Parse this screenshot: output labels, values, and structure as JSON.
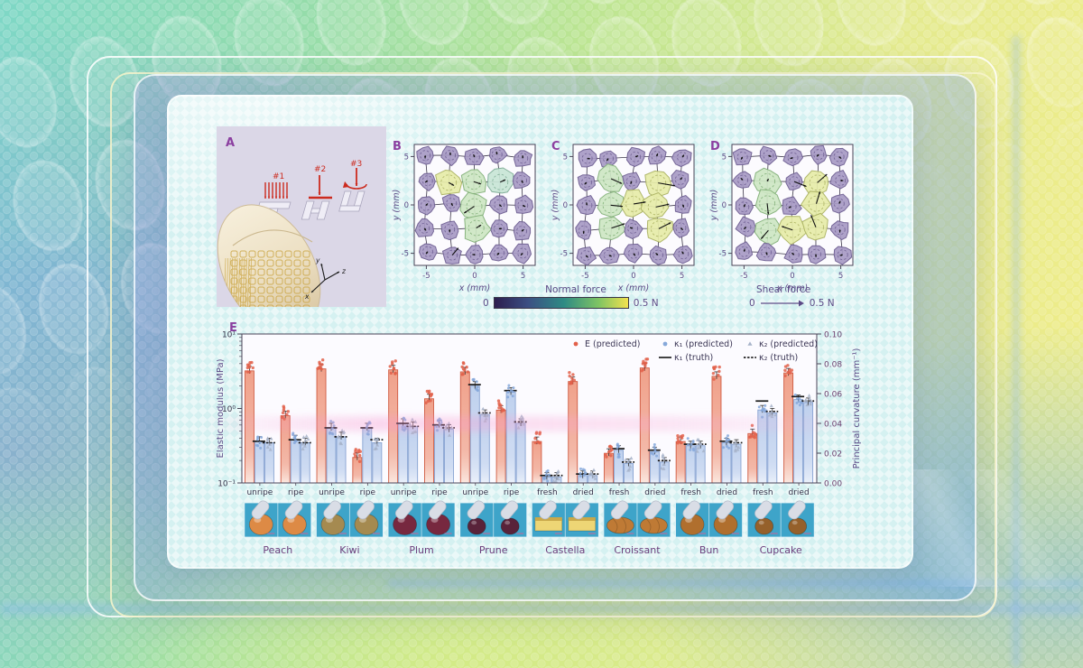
{
  "panel_a": {
    "label": "A",
    "force_labels": [
      "#1",
      "#2",
      "#3"
    ],
    "axis_labels": [
      "x",
      "y",
      "z"
    ]
  },
  "force_maps": {
    "x_label": "x (mm)",
    "y_label": "y (mm)",
    "tick_labels": [
      "-5",
      "0",
      "5"
    ],
    "cell_colors": {
      "p": [
        "#a79ac4",
        "#6c5c90"
      ],
      "g": [
        "#cde6c3",
        "#7fae76"
      ],
      "y": [
        "#e6eba8",
        "#a9b05f"
      ],
      "t": [
        "#c8e5d6",
        "#7aaa92"
      ]
    },
    "panels": [
      {
        "label": "B",
        "rows": [
          "ppppp",
          "pygtp",
          "ppgpp",
          "ppgpp",
          "ppppp"
        ],
        "arrows": [
          [
            1,
            1,
            0.22,
            0.12
          ],
          [
            1,
            2,
            0.3,
            0.1
          ],
          [
            1,
            3,
            0.22,
            -0.1
          ],
          [
            2,
            2,
            -0.42,
            0.28
          ],
          [
            3,
            2,
            0.2,
            -0.12
          ],
          [
            4,
            1,
            0.25,
            -0.3
          ]
        ]
      },
      {
        "label": "C",
        "rows": [
          "ppppp",
          "pgpyp",
          "pgyyp",
          "pgpyp",
          "ppppp"
        ],
        "arrows": [
          [
            1,
            1,
            0.45,
            0.2
          ],
          [
            1,
            3,
            0.7,
            0.12
          ],
          [
            2,
            1,
            0.5,
            0.05
          ],
          [
            2,
            2,
            0.5,
            -0.08
          ],
          [
            2,
            3,
            0.55,
            -0.12
          ],
          [
            3,
            1,
            0.55,
            -0.18
          ],
          [
            3,
            3,
            0.5,
            -0.25
          ]
        ]
      },
      {
        "label": "D",
        "rows": [
          "ppppp",
          "pgpyp",
          "pgpyp",
          "pgyyp",
          "ppppp"
        ],
        "arrows": [
          [
            1,
            2,
            0.5,
            0.2
          ],
          [
            1,
            3,
            0.4,
            -0.35
          ],
          [
            2,
            3,
            0.15,
            -0.5
          ],
          [
            3,
            2,
            -0.45,
            -0.15
          ],
          [
            2,
            1,
            0.05,
            0.45
          ],
          [
            3,
            1,
            -0.3,
            0.35
          ],
          [
            3,
            3,
            -0.2,
            -0.5
          ]
        ]
      }
    ],
    "colorbar": {
      "label": "Normal force",
      "min": "0",
      "max": "0.5 N"
    },
    "shear": {
      "label": "Shear force",
      "min": "0",
      "max": "0.5 N"
    }
  },
  "chart_data": {
    "type": "bar",
    "panel_label": "E",
    "left_axis": {
      "label": "Elastic modulus (MPa)",
      "scale": "log",
      "range": [
        0.1,
        10
      ],
      "tick_labels": [
        "10⁻¹",
        "10⁰",
        "10¹"
      ]
    },
    "right_axis": {
      "label": "Principal curvature (mm⁻¹)",
      "scale": "linear",
      "range": [
        0,
        0.1
      ],
      "tick_labels": [
        "0.00",
        "0.02",
        "0.04",
        "0.06",
        "0.08",
        "0.10"
      ]
    },
    "legend": [
      {
        "label": "E (predicted)",
        "marker": "dot",
        "color": "#e2604a"
      },
      {
        "label": "κ₁ (predicted)",
        "marker": "dot",
        "color": "#86a8da"
      },
      {
        "label": "κ₂ (predicted)",
        "marker": "triangle",
        "color": "#a7b3c9"
      },
      {
        "label": "κ₁ (truth)",
        "marker": "line",
        "color": "#222222"
      },
      {
        "label": "κ₂ (truth)",
        "marker": "dashed-line",
        "color": "#222222"
      }
    ],
    "groups": [
      {
        "food": "Peach",
        "state": "unripe",
        "E": 3.2,
        "k1": 0.028,
        "k2": 0.027,
        "k1_truth": 0.028,
        "k2_truth": 0.027
      },
      {
        "food": "Peach",
        "state": "ripe",
        "E": 0.8,
        "k1": 0.029,
        "k2": 0.027,
        "k1_truth": 0.029,
        "k2_truth": 0.027
      },
      {
        "food": "Kiwi",
        "state": "unripe",
        "E": 3.4,
        "k1": 0.037,
        "k2": 0.031,
        "k1_truth": 0.037,
        "k2_truth": 0.031
      },
      {
        "food": "Kiwi",
        "state": "ripe",
        "E": 0.22,
        "k1": 0.037,
        "k2": 0.027,
        "k1_truth": 0.037,
        "k2_truth": 0.029
      },
      {
        "food": "Plum",
        "state": "unripe",
        "E": 3.3,
        "k1": 0.04,
        "k2": 0.038,
        "k1_truth": 0.04,
        "k2_truth": 0.038
      },
      {
        "food": "Plum",
        "state": "ripe",
        "E": 1.35,
        "k1": 0.039,
        "k2": 0.036,
        "k1_truth": 0.039,
        "k2_truth": 0.037
      },
      {
        "food": "Prune",
        "state": "unripe",
        "E": 3.1,
        "k1": 0.065,
        "k2": 0.046,
        "k1_truth": 0.066,
        "k2_truth": 0.047
      },
      {
        "food": "Prune",
        "state": "ripe",
        "E": 0.95,
        "k1": 0.061,
        "k2": 0.04,
        "k1_truth": 0.062,
        "k2_truth": 0.041
      },
      {
        "food": "Castella",
        "state": "fresh",
        "E": 0.36,
        "k1": 0.004,
        "k2": 0.004,
        "k1_truth": 0.005,
        "k2_truth": 0.005
      },
      {
        "food": "Castella",
        "state": "dried",
        "E": 2.3,
        "k1": 0.005,
        "k2": 0.005,
        "k1_truth": 0.006,
        "k2_truth": 0.006
      },
      {
        "food": "Croissant",
        "state": "fresh",
        "E": 0.25,
        "k1": 0.022,
        "k2": 0.013,
        "k1_truth": 0.023,
        "k2_truth": 0.014
      },
      {
        "food": "Croissant",
        "state": "dried",
        "E": 3.5,
        "k1": 0.021,
        "k2": 0.014,
        "k1_truth": 0.022,
        "k2_truth": 0.015
      },
      {
        "food": "Bun",
        "state": "fresh",
        "E": 0.36,
        "k1": 0.025,
        "k2": 0.025,
        "k1_truth": 0.026,
        "k2_truth": 0.026
      },
      {
        "food": "Bun",
        "state": "dried",
        "E": 2.7,
        "k1": 0.027,
        "k2": 0.026,
        "k1_truth": 0.028,
        "k2_truth": 0.027
      },
      {
        "food": "Cupcake",
        "state": "fresh",
        "E": 0.46,
        "k1": 0.049,
        "k2": 0.047,
        "k1_truth": 0.055,
        "k2_truth": 0.048
      },
      {
        "food": "Cupcake",
        "state": "dried",
        "E": 3.0,
        "k1": 0.056,
        "k2": 0.054,
        "k1_truth": 0.058,
        "k2_truth": 0.055
      }
    ],
    "foods": [
      {
        "name": "Peach",
        "color": "#dd8a45",
        "shape": "round"
      },
      {
        "name": "Kiwi",
        "color": "#a58a50",
        "shape": "round"
      },
      {
        "name": "Plum",
        "color": "#77283f",
        "shape": "round"
      },
      {
        "name": "Prune",
        "color": "#59233a",
        "shape": "round-small"
      },
      {
        "name": "Castella",
        "color": "#eed675",
        "shape": "slab"
      },
      {
        "name": "Croissant",
        "color": "#bf7a35",
        "shape": "oval"
      },
      {
        "name": "Bun",
        "color": "#b06f2e",
        "shape": "round"
      },
      {
        "name": "Cupcake",
        "color": "#95602b",
        "shape": "round-small"
      }
    ]
  },
  "colors": {
    "accent_purple": "#8b3fa0",
    "axis_text": "#5c4a86",
    "tick_text": "#37334a",
    "bar_red_fill": "#f0a18a",
    "bar_red_stroke": "#d05b42",
    "bar_blue_fill": "#bfd1ee",
    "bar_blue_stroke": "#87a3d2",
    "photo_bg": "#3ea4c9",
    "photo_label": "#6d3f7d"
  }
}
